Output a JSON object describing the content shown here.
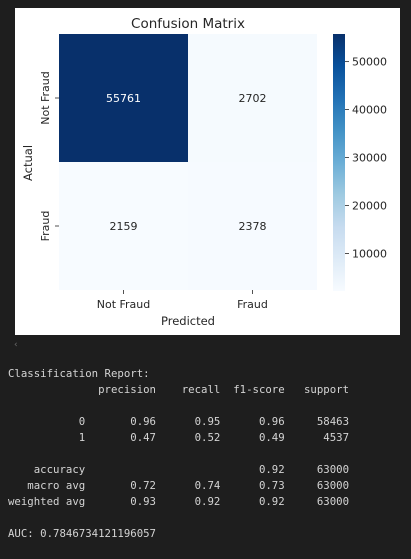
{
  "figure": {
    "colors": {
      "cmap_dark": "#08306b",
      "cmap_light": "#f7fbff",
      "text_on_dark": "#ffffff",
      "text_on_light": "#262626"
    }
  },
  "chart_data": {
    "type": "heatmap",
    "title": "Confusion Matrix",
    "xlabel": "Predicted",
    "ylabel": "Actual",
    "x_categories": [
      "Not Fraud",
      "Fraud"
    ],
    "y_categories": [
      "Not Fraud",
      "Fraud"
    ],
    "values": [
      [
        55761,
        2702
      ],
      [
        2159,
        2378
      ]
    ],
    "cell_labels": [
      [
        "55761",
        "2702"
      ],
      [
        "2159",
        "2378"
      ]
    ],
    "colormap": "Blues",
    "colorbar": {
      "range": [
        2159,
        55761
      ],
      "ticks": [
        10000,
        20000,
        30000,
        40000,
        50000
      ],
      "tick_labels": [
        "10000",
        "20000",
        "30000",
        "40000",
        "50000"
      ]
    }
  },
  "output": {
    "collapse_icon": "chevron-left-icon",
    "collapse_glyph": "‹",
    "lines": [
      "Classification Report:",
      "              precision    recall  f1-score   support",
      "",
      "           0       0.96      0.95      0.96     58463",
      "           1       0.47      0.52      0.49      4537",
      "",
      "    accuracy                           0.92     63000",
      "   macro avg       0.72      0.74      0.73     63000",
      "weighted avg       0.93      0.92      0.92     63000",
      "",
      "AUC: 0.7846734121196057"
    ]
  }
}
